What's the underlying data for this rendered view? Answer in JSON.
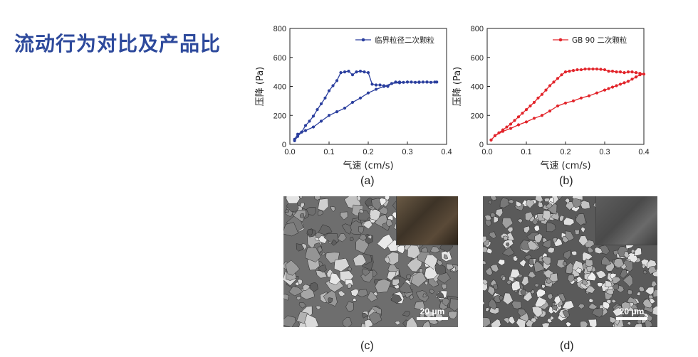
{
  "slide": {
    "title": "流动行为对比及产品比"
  },
  "chart_data": [
    {
      "type": "line",
      "panel_label": "(a)",
      "xlabel": "气速 (cm/s)",
      "ylabel": "压降 (Pa)",
      "xlim": [
        0,
        0.4
      ],
      "ylim": [
        0,
        800
      ],
      "xticks": [
        "0.0",
        "0.1",
        "0.2",
        "0.3",
        "0.4"
      ],
      "yticks": [
        "0",
        "200",
        "400",
        "600",
        "800"
      ],
      "legend_position": "top-right",
      "color": "#2b3f9e",
      "series": [
        {
          "name": "临界粒径二次颗粒",
          "x": [
            0.012,
            0.02,
            0.03,
            0.04,
            0.05,
            0.06,
            0.07,
            0.08,
            0.09,
            0.1,
            0.11,
            0.12,
            0.13,
            0.14,
            0.15,
            0.16,
            0.17,
            0.18,
            0.19,
            0.2,
            0.21,
            0.22,
            0.23,
            0.24,
            0.25,
            0.26,
            0.27,
            0.28,
            0.29,
            0.3,
            0.31,
            0.32,
            0.33,
            0.34,
            0.35,
            0.36,
            0.37,
            0.375,
            0.35,
            0.33,
            0.3,
            0.28,
            0.26,
            0.24,
            0.22,
            0.2,
            0.18,
            0.16,
            0.14,
            0.12,
            0.1,
            0.08,
            0.06,
            0.04,
            0.03,
            0.02,
            0.012
          ],
          "y": [
            25,
            55,
            85,
            130,
            160,
            195,
            240,
            280,
            320,
            370,
            405,
            440,
            495,
            500,
            505,
            480,
            500,
            505,
            500,
            495,
            415,
            410,
            410,
            405,
            400,
            420,
            430,
            430,
            428,
            430,
            430,
            428,
            428,
            430,
            430,
            428,
            430,
            430,
            430,
            430,
            430,
            425,
            420,
            400,
            380,
            355,
            320,
            290,
            250,
            225,
            200,
            160,
            120,
            95,
            85,
            70,
            35
          ]
        }
      ]
    },
    {
      "type": "line",
      "panel_label": "(b)",
      "xlabel": "气速 (cm/s)",
      "ylabel": "压降 (Pa)",
      "xlim": [
        0,
        0.4
      ],
      "ylim": [
        0,
        800
      ],
      "xticks": [
        "0.0",
        "0.1",
        "0.2",
        "0.3",
        "0.4"
      ],
      "yticks": [
        "0",
        "200",
        "400",
        "600",
        "800"
      ],
      "legend_position": "top-right",
      "color": "#e2252b",
      "series": [
        {
          "name": "GB 90 二次颗粒",
          "x": [
            0.01,
            0.02,
            0.03,
            0.04,
            0.05,
            0.06,
            0.07,
            0.08,
            0.09,
            0.1,
            0.11,
            0.12,
            0.13,
            0.14,
            0.15,
            0.16,
            0.17,
            0.18,
            0.19,
            0.2,
            0.21,
            0.22,
            0.23,
            0.24,
            0.25,
            0.26,
            0.27,
            0.28,
            0.29,
            0.3,
            0.31,
            0.32,
            0.33,
            0.34,
            0.35,
            0.36,
            0.37,
            0.38,
            0.39,
            0.4,
            0.39,
            0.38,
            0.37,
            0.36,
            0.35,
            0.34,
            0.33,
            0.32,
            0.31,
            0.3,
            0.28,
            0.26,
            0.24,
            0.22,
            0.2,
            0.18,
            0.16,
            0.14,
            0.12,
            0.1,
            0.08,
            0.06,
            0.04,
            0.02,
            0.01
          ],
          "y": [
            30,
            60,
            80,
            100,
            120,
            140,
            165,
            190,
            215,
            240,
            265,
            290,
            320,
            345,
            375,
            405,
            430,
            455,
            480,
            500,
            505,
            510,
            515,
            515,
            520,
            520,
            520,
            520,
            518,
            515,
            505,
            505,
            500,
            500,
            495,
            500,
            500,
            495,
            490,
            485,
            480,
            465,
            450,
            435,
            425,
            415,
            405,
            395,
            385,
            375,
            355,
            335,
            320,
            300,
            285,
            265,
            230,
            200,
            180,
            155,
            135,
            110,
            90,
            60,
            30
          ]
        }
      ]
    }
  ],
  "images": [
    {
      "panel_label": "(c)",
      "scale_label": "20 μm"
    },
    {
      "panel_label": "(d)",
      "scale_label": "20 μm"
    }
  ]
}
